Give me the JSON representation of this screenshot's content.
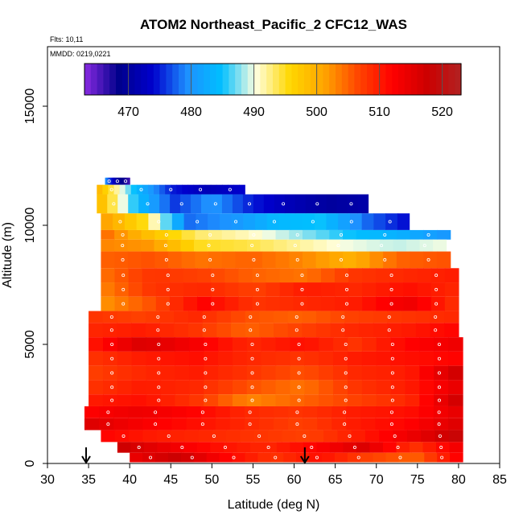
{
  "chart_data": {
    "type": "heatmap",
    "title": "ATOM2 Northeast_Pacific_2 CFC12_WAS",
    "annotations": {
      "flights": "Flts: 10,11",
      "dates": "MMDD: 0219,0221"
    },
    "xlabel": "Latitude (deg N)",
    "ylabel": "Altitude (m)",
    "xlim": [
      30,
      85
    ],
    "ylim": [
      0,
      17500
    ],
    "x_ticks": [
      "30",
      "35",
      "40",
      "45",
      "50",
      "55",
      "60",
      "65",
      "70",
      "75",
      "80",
      "85"
    ],
    "y_ticks": [
      "0",
      "5000",
      "10000",
      "15000"
    ],
    "colorbar": {
      "range": [
        463,
        523
      ],
      "tick_labels": [
        "470",
        "480",
        "490",
        "500",
        "510",
        "520"
      ],
      "colors": [
        "#8a2be2",
        "#00008b",
        "#0000cd",
        "#1e90ff",
        "#00bfff",
        "#ffffe0",
        "#ffd700",
        "#ffa500",
        "#ff4500",
        "#ff0000",
        "#cd0000",
        "#b22222"
      ]
    },
    "arrows_latitude": [
      34.7,
      61.3
    ],
    "rows": [
      {
        "alt": [
          11700,
          12000
        ],
        "lat": [
          37.0,
          40.0
        ],
        "values": [
          480,
          470,
          466
        ]
      },
      {
        "alt": [
          11300,
          11700
        ],
        "lat": [
          36.0,
          54.0
        ],
        "values": [
          500,
          485,
          475,
          472,
          474
        ]
      },
      {
        "alt": [
          10500,
          11300
        ],
        "lat": [
          36.0,
          69.0
        ],
        "values": [
          500,
          485,
          476,
          480,
          475,
          472,
          470,
          471
        ]
      },
      {
        "alt": [
          9800,
          10500
        ],
        "lat": [
          36.5,
          74.0
        ],
        "values": [
          502,
          495,
          478,
          480,
          484,
          485,
          478,
          474
        ]
      },
      {
        "alt": [
          9400,
          9800
        ],
        "lat": [
          36.5,
          79.0
        ],
        "values": [
          505,
          498,
          493,
          491,
          488,
          485,
          483,
          480
        ]
      },
      {
        "alt": [
          8900,
          9400
        ],
        "lat": [
          36.5,
          78.5
        ],
        "values": [
          503,
          502,
          495,
          494,
          492,
          490,
          489,
          490
        ]
      },
      {
        "alt": [
          8200,
          8900
        ],
        "lat": [
          36.5,
          79.0
        ],
        "values": [
          505,
          506,
          504,
          505,
          503,
          500,
          505,
          506
        ]
      },
      {
        "alt": [
          7600,
          8200
        ],
        "lat": [
          36.5,
          80.0
        ],
        "values": [
          504,
          508,
          507,
          505,
          504,
          508,
          509,
          510
        ]
      },
      {
        "alt": [
          7000,
          7600
        ],
        "lat": [
          36.5,
          80.0
        ],
        "values": [
          503,
          508,
          509,
          507,
          510,
          509,
          511,
          509
        ]
      },
      {
        "alt": [
          6400,
          7000
        ],
        "lat": [
          36.5,
          80.0
        ],
        "values": [
          502,
          506,
          512,
          508,
          509,
          510,
          514,
          508
        ]
      },
      {
        "alt": [
          5900,
          6400
        ],
        "lat": [
          35.0,
          80.0
        ],
        "values": [
          508,
          507,
          509,
          506,
          505,
          507,
          508,
          509
        ]
      },
      {
        "alt": [
          5300,
          5900
        ],
        "lat": [
          35.0,
          80.0
        ],
        "values": [
          509,
          510,
          508,
          505,
          507,
          509,
          510,
          512
        ]
      },
      {
        "alt": [
          4700,
          5300
        ],
        "lat": [
          35.0,
          80.5
        ],
        "values": [
          510,
          516,
          513,
          509,
          511,
          508,
          512,
          514
        ]
      },
      {
        "alt": [
          4100,
          4700
        ],
        "lat": [
          35.0,
          80.5
        ],
        "values": [
          508,
          510,
          511,
          509,
          508,
          510,
          511,
          512
        ]
      },
      {
        "alt": [
          3500,
          4100
        ],
        "lat": [
          35.0,
          80.5
        ],
        "values": [
          507,
          509,
          510,
          508,
          506,
          509,
          510,
          518
        ]
      },
      {
        "alt": [
          2900,
          3500
        ],
        "lat": [
          35.0,
          80.5
        ],
        "values": [
          508,
          510,
          509,
          506,
          504,
          508,
          510,
          515
        ]
      },
      {
        "alt": [
          2400,
          2900
        ],
        "lat": [
          35.0,
          80.5
        ],
        "values": [
          510,
          511,
          508,
          503,
          505,
          507,
          509,
          518
        ]
      },
      {
        "alt": [
          1900,
          2400
        ],
        "lat": [
          34.5,
          80.5
        ],
        "values": [
          512,
          514,
          512,
          509,
          508,
          510,
          511,
          515
        ]
      },
      {
        "alt": [
          1400,
          1900
        ],
        "lat": [
          34.5,
          80.5
        ],
        "values": [
          516,
          513,
          511,
          509,
          507,
          510,
          512,
          516
        ]
      },
      {
        "alt": [
          900,
          1400
        ],
        "lat": [
          36.5,
          80.5
        ],
        "values": [
          512,
          510,
          509,
          508,
          507,
          510,
          514,
          519
        ]
      },
      {
        "alt": [
          450,
          900
        ],
        "lat": [
          38.5,
          80.5
        ],
        "values": [
          518,
          514,
          511,
          509,
          512,
          516,
          508,
          514
        ]
      },
      {
        "alt": [
          50,
          450
        ],
        "lat": [
          40.0,
          80.5
        ],
        "values": [
          514,
          518,
          512,
          508,
          511,
          507,
          505,
          513
        ]
      }
    ]
  }
}
